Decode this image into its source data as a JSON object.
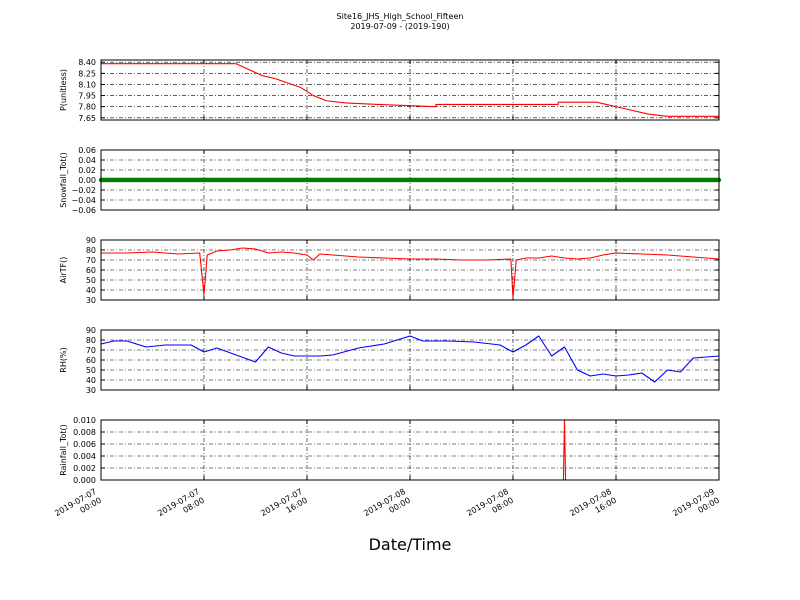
{
  "figure": {
    "title": "Site16_JHS_High_School_Fifteen",
    "subtitle": "2019-07-09 - (2019-190)",
    "xlabel": "Date/Time"
  },
  "chart_data": [
    {
      "type": "line",
      "ylabel": "P(unitless)",
      "ylim": [
        7.62,
        8.43
      ],
      "yticks": [
        "7.65",
        "7.80",
        "7.95",
        "8.10",
        "8.25",
        "8.40"
      ],
      "ytick_values": [
        7.65,
        7.8,
        7.95,
        8.1,
        8.25,
        8.4
      ],
      "color": "#ff0000",
      "grid": true,
      "series": [
        {
          "x": [
            "2019-07-07 00:00",
            "2019-07-07 08:00",
            "2019-07-07 10:30",
            "2019-07-07 11:30",
            "2019-07-07 12:30",
            "2019-07-07 13:30",
            "2019-07-07 14:30",
            "2019-07-07 15:30",
            "2019-07-07 16:30",
            "2019-07-07 17:30",
            "2019-07-07 19:00",
            "2019-07-07 21:30",
            "2019-07-08 02:00",
            "2019-07-08 02:01",
            "2019-07-08 11:30",
            "2019-07-08 11:31",
            "2019-07-08 14:30",
            "2019-07-08 15:30",
            "2019-07-08 16:30",
            "2019-07-08 17:30",
            "2019-07-08 18:30",
            "2019-07-08 20:00",
            "2019-07-09 00:00"
          ],
          "y": [
            8.38,
            8.38,
            8.38,
            8.3,
            8.22,
            8.18,
            8.12,
            8.06,
            7.95,
            7.88,
            7.85,
            7.83,
            7.8,
            7.83,
            7.83,
            7.86,
            7.86,
            7.82,
            7.78,
            7.74,
            7.7,
            7.67,
            7.67
          ]
        }
      ]
    },
    {
      "type": "scatter",
      "ylabel": "Snowfall_Tot()",
      "ylim": [
        -0.06,
        0.06
      ],
      "yticks": [
        "−0.06",
        "−0.04",
        "−0.02",
        "0.00",
        "0.02",
        "0.04",
        "0.06"
      ],
      "ytick_values": [
        -0.06,
        -0.04,
        -0.02,
        0.0,
        0.02,
        0.04,
        0.06
      ],
      "color": "#008000",
      "grid": true,
      "series": [
        {
          "x_range": [
            "2019-07-07 00:00",
            "2019-07-09 00:00"
          ],
          "interval_minutes": 5,
          "y_constant": 0.0
        }
      ]
    },
    {
      "type": "line",
      "ylabel": "AirTF()",
      "ylim": [
        30,
        90
      ],
      "yticks": [
        "30",
        "40",
        "50",
        "60",
        "70",
        "80",
        "90"
      ],
      "ytick_values": [
        30,
        40,
        50,
        60,
        70,
        80,
        90
      ],
      "color": "#ff0000",
      "grid": true,
      "series": [
        {
          "x": [
            "2019-07-07 00:00",
            "2019-07-07 02:00",
            "2019-07-07 04:00",
            "2019-07-07 06:00",
            "2019-07-07 07:40",
            "2019-07-07 08:00",
            "2019-07-07 08:15",
            "2019-07-07 09:00",
            "2019-07-07 10:00",
            "2019-07-07 11:00",
            "2019-07-07 12:00",
            "2019-07-07 13:00",
            "2019-07-07 14:00",
            "2019-07-07 15:00",
            "2019-07-07 16:00",
            "2019-07-07 16:30",
            "2019-07-07 17:00",
            "2019-07-07 18:00",
            "2019-07-07 20:00",
            "2019-07-07 22:00",
            "2019-07-08 00:00",
            "2019-07-08 02:00",
            "2019-07-08 04:00",
            "2019-07-08 06:00",
            "2019-07-08 07:50",
            "2019-07-08 08:00",
            "2019-07-08 08:15",
            "2019-07-08 09:00",
            "2019-07-08 10:00",
            "2019-07-08 11:00",
            "2019-07-08 12:00",
            "2019-07-08 13:00",
            "2019-07-08 14:00",
            "2019-07-08 15:00",
            "2019-07-08 16:00",
            "2019-07-08 18:00",
            "2019-07-08 20:00",
            "2019-07-08 22:00",
            "2019-07-09 00:00"
          ],
          "y": [
            77,
            77,
            78,
            76,
            77,
            35,
            75,
            79,
            80,
            82,
            81,
            77,
            78,
            77,
            75,
            70,
            76,
            75,
            73,
            72,
            71,
            71,
            70,
            70,
            71,
            32,
            70,
            72,
            72,
            74,
            72,
            71,
            72,
            75,
            77,
            76,
            75,
            73,
            71
          ]
        }
      ]
    },
    {
      "type": "line",
      "ylabel": "RH(%)",
      "ylim": [
        30,
        90
      ],
      "yticks": [
        "30",
        "40",
        "50",
        "60",
        "70",
        "80",
        "90"
      ],
      "ytick_values": [
        30,
        40,
        50,
        60,
        70,
        80,
        90
      ],
      "color": "#0000ff",
      "grid": true,
      "series": [
        {
          "x": [
            "2019-07-07 00:00",
            "2019-07-07 01:00",
            "2019-07-07 02:00",
            "2019-07-07 03:30",
            "2019-07-07 05:00",
            "2019-07-07 07:00",
            "2019-07-07 08:00",
            "2019-07-07 09:00",
            "2019-07-07 10:30",
            "2019-07-07 12:00",
            "2019-07-07 13:00",
            "2019-07-07 14:00",
            "2019-07-07 15:00",
            "2019-07-07 16:00",
            "2019-07-07 17:00",
            "2019-07-07 18:00",
            "2019-07-07 20:00",
            "2019-07-07 22:00",
            "2019-07-08 00:00",
            "2019-07-08 01:00",
            "2019-07-08 03:00",
            "2019-07-08 05:00",
            "2019-07-08 07:00",
            "2019-07-08 08:00",
            "2019-07-08 09:00",
            "2019-07-08 10:00",
            "2019-07-08 11:00",
            "2019-07-08 12:00",
            "2019-07-08 13:00",
            "2019-07-08 14:00",
            "2019-07-08 15:00",
            "2019-07-08 16:00",
            "2019-07-08 17:00",
            "2019-07-08 18:00",
            "2019-07-08 19:00",
            "2019-07-08 20:00",
            "2019-07-08 21:00",
            "2019-07-08 22:00",
            "2019-07-09 00:00"
          ],
          "y": [
            76,
            79,
            79,
            73,
            75,
            75,
            68,
            72,
            65,
            58,
            73,
            67,
            64,
            64,
            64,
            65,
            72,
            76,
            84,
            79,
            79,
            78,
            75,
            68,
            75,
            84,
            64,
            73,
            50,
            44,
            46,
            44,
            45,
            47,
            38,
            50,
            48,
            62,
            64
          ]
        }
      ]
    },
    {
      "type": "line",
      "ylabel": "Rainfall_Tot()",
      "ylim": [
        0,
        0.01
      ],
      "yticks": [
        "0.000",
        "0.002",
        "0.004",
        "0.006",
        "0.008",
        "0.010"
      ],
      "ytick_values": [
        0.0,
        0.002,
        0.004,
        0.006,
        0.008,
        0.01
      ],
      "color": "#ff0000",
      "grid": true,
      "series": [
        {
          "x": [
            "2019-07-07 00:00",
            "2019-07-08 11:55",
            "2019-07-08 12:00",
            "2019-07-08 12:05",
            "2019-07-09 00:00"
          ],
          "y": [
            0,
            0,
            0.01,
            0,
            0
          ]
        }
      ]
    }
  ],
  "xaxis": {
    "range": [
      "2019-07-07 00:00",
      "2019-07-09 00:00"
    ],
    "ticks": [
      {
        "date": "2019-07-07",
        "time": "00:00",
        "value": "2019-07-07 00:00"
      },
      {
        "date": "2019-07-07",
        "time": "08:00",
        "value": "2019-07-07 08:00"
      },
      {
        "date": "2019-07-07",
        "time": "16:00",
        "value": "2019-07-07 16:00"
      },
      {
        "date": "2019-07-08",
        "time": "00:00",
        "value": "2019-07-08 00:00"
      },
      {
        "date": "2019-07-08",
        "time": "08:00",
        "value": "2019-07-08 08:00"
      },
      {
        "date": "2019-07-08",
        "time": "16:00",
        "value": "2019-07-08 16:00"
      },
      {
        "date": "2019-07-09",
        "time": "00:00",
        "value": "2019-07-09 00:00"
      }
    ]
  }
}
